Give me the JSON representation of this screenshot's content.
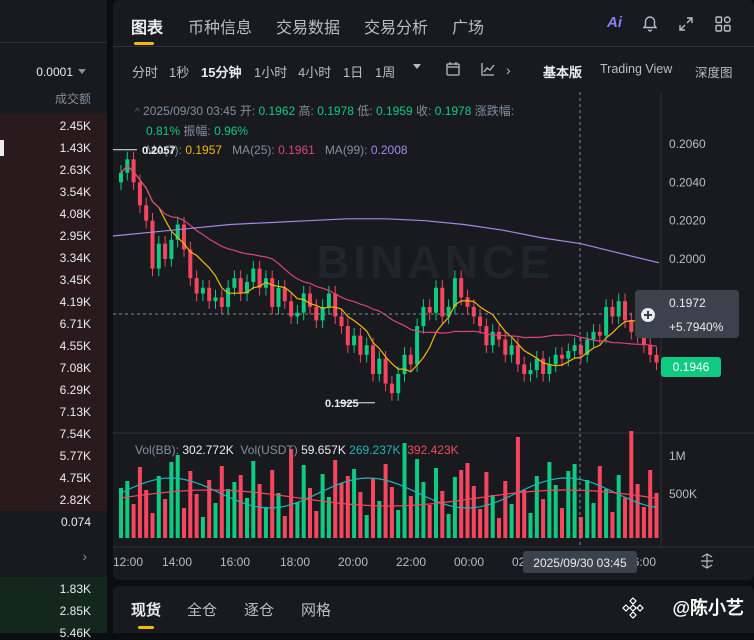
{
  "orderbook": {
    "precision": "0.0001",
    "volume_header": "成交额",
    "asks": [
      "2.45K",
      "1.43K",
      "2.63K",
      "3.54K",
      "4.08K",
      "2.95K",
      "3.34K",
      "3.45K",
      "4.19K",
      "6.71K",
      "4.55K",
      "7.08K",
      "6.29K",
      "7.13K",
      "7.54K",
      "5.77K",
      "4.75K",
      "2.82K",
      "0.074"
    ],
    "bids": [
      "1.83K",
      "2.85K",
      "5.46K"
    ]
  },
  "tabs": [
    "图表",
    "币种信息",
    "交易数据",
    "交易分析",
    "广场"
  ],
  "toolbar": {
    "timeframes": [
      "分时",
      "1秒",
      "15分钟",
      "1小时",
      "4小时",
      "1日",
      "1周"
    ],
    "view_modes": [
      "基本版",
      "Trading View",
      "深度图"
    ]
  },
  "ohlc": {
    "date": "2025/09/30 03:45",
    "open_label": "开:",
    "open": "0.1962",
    "high_label": "高:",
    "high": "0.1978",
    "low_label": "低:",
    "low": "0.1959",
    "close_label": "收:",
    "close": "0.1978",
    "change_label": "涨跌幅:",
    "change": "0.81%",
    "amp_label": "振幅:",
    "amp": "0.96%"
  },
  "ma": {
    "ma7_label": "MA(7):",
    "ma7": "0.1957",
    "ma25_label": "MA(25):",
    "ma25": "0.1961",
    "ma99_label": "MA(99):",
    "ma99": "0.2008"
  },
  "price_axis": [
    "0.2060",
    "0.2040",
    "0.2020",
    "0.2000"
  ],
  "watermark": "BINANCE",
  "annotations": {
    "high": "0.2057",
    "low": "0.1925"
  },
  "crosshair": {
    "price": "0.1972",
    "pct": "+5.7940%",
    "time": "2025/09/30 03:45"
  },
  "last_price": "0.1946",
  "volume": {
    "label": "Vol(BB):",
    "value": "302.772K",
    "usdt_label": "Vol(USDT)",
    "usdt": "59.657K",
    "ma1": "269.237K",
    "ma2": "392.423K",
    "axis": [
      "1M",
      "500K"
    ]
  },
  "time_axis": [
    "12:00",
    "14:00",
    "16:00",
    "18:00",
    "20:00",
    "22:00",
    "00:00",
    "02:00",
    "06:00"
  ],
  "bottom_tabs": [
    "现货",
    "全仓",
    "逐仓",
    "网格"
  ],
  "corner_watermark": "@陈小艺",
  "colors": {
    "up": "#0ecb81",
    "down": "#f6465d",
    "ma7": "#f0b90b",
    "ma25": "#d9447a",
    "ma99": "#a687e8",
    "accent": "#f0b90b"
  }
}
